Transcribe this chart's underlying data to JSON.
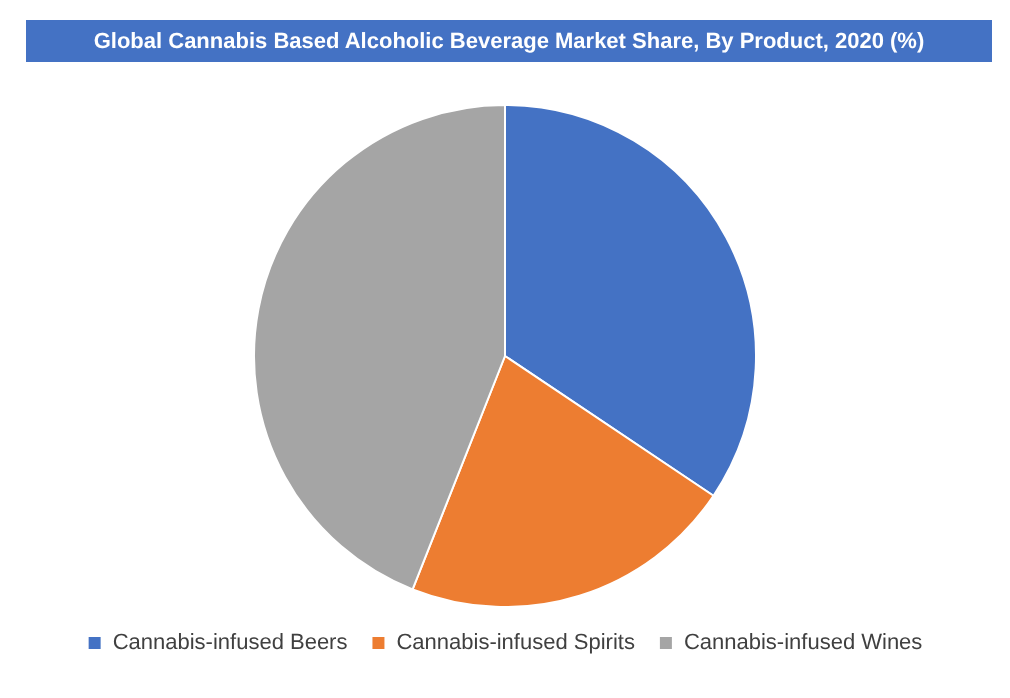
{
  "chart_data": {
    "type": "pie",
    "title": "Global Cannabis Based Alcoholic Beverage Market Share, By Product, 2020 (%)",
    "categories": [
      "Cannabis-infused Beers",
      "Cannabis-infused Spirits",
      "Cannabis-infused Wines"
    ],
    "values": [
      34.4,
      21.6,
      44.0
    ],
    "colors": [
      "#4472c4",
      "#ed7d31",
      "#a5a5a5"
    ],
    "legend": "bottom"
  }
}
